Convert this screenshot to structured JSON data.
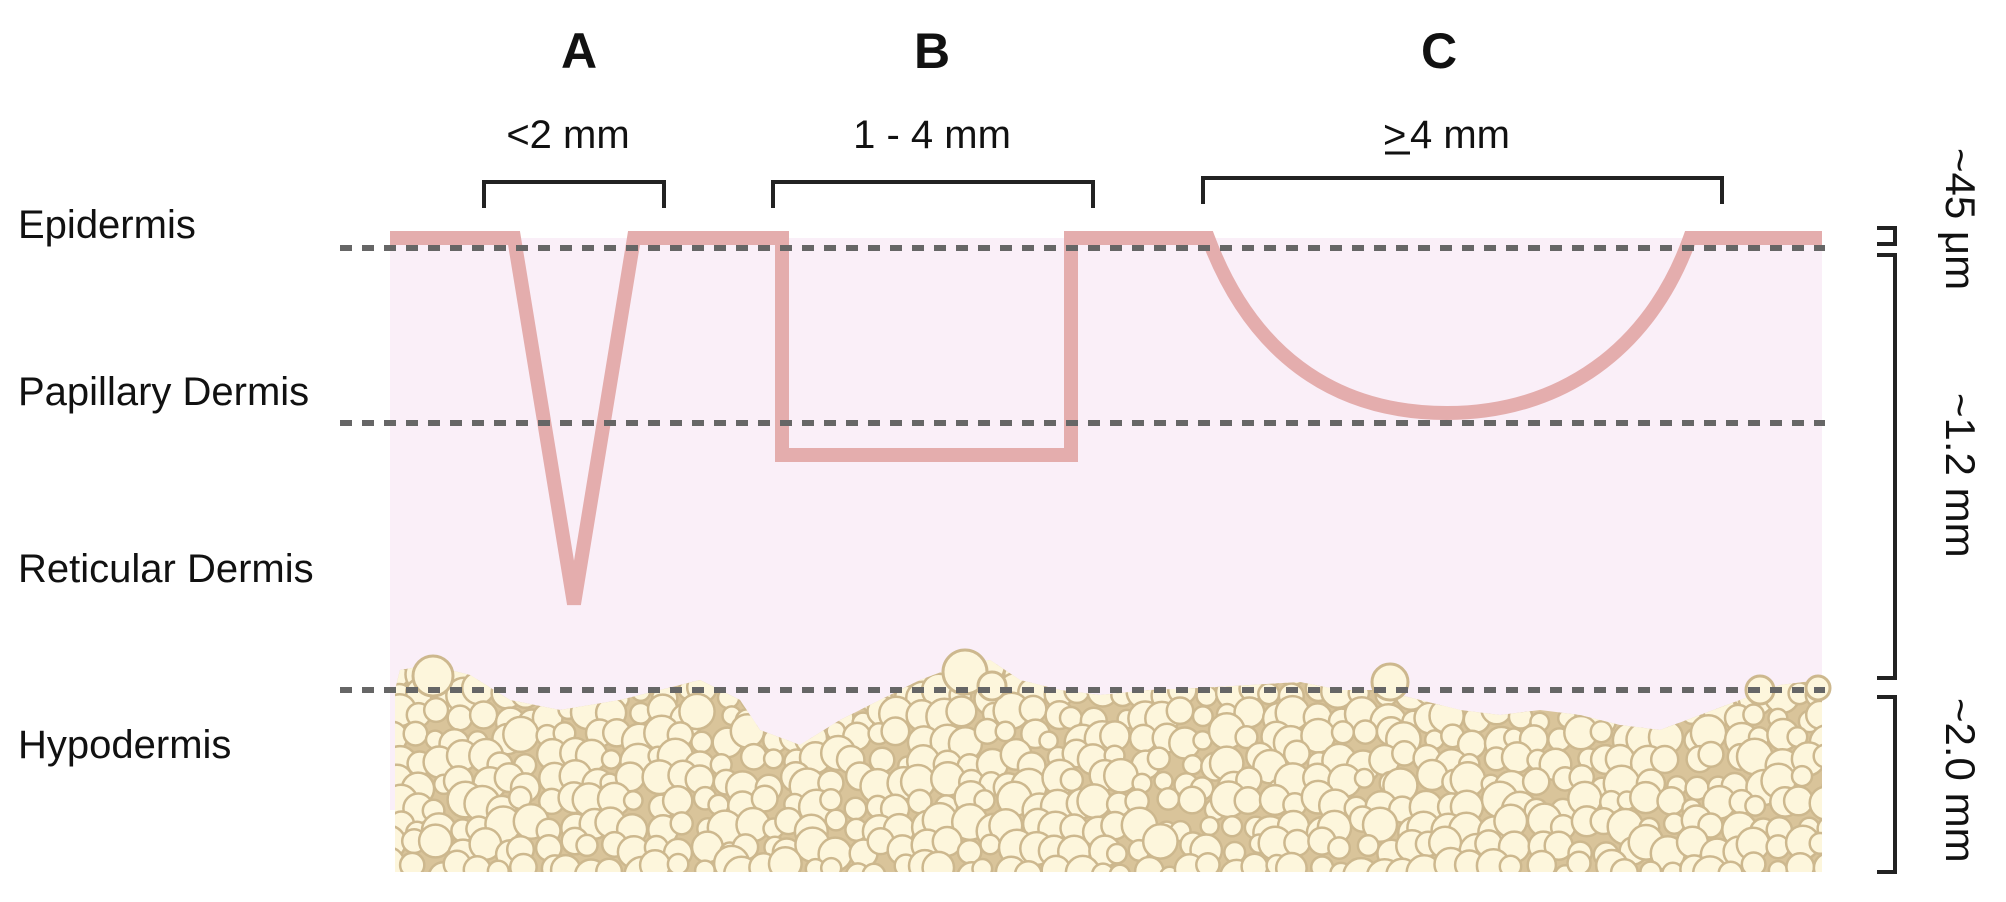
{
  "layers": [
    {
      "key": "epidermis",
      "label": "Epidermis"
    },
    {
      "key": "papillary",
      "label": "Papillary Dermis"
    },
    {
      "key": "reticular",
      "label": "Reticular Dermis"
    },
    {
      "key": "hypodermis",
      "label": "Hypodermis"
    }
  ],
  "scar_types": [
    {
      "letter": "A",
      "size_text": "<2 mm",
      "shape": "V-shaped icepick"
    },
    {
      "letter": "B",
      "size_text": "1 - 4 mm",
      "shape": "box"
    },
    {
      "letter": "C",
      "size_text": "4 mm",
      "size_prefix_symbol": ">",
      "shape": "rolling"
    }
  ],
  "depths": [
    {
      "key": "epidermis",
      "text": "~45 μm"
    },
    {
      "key": "dermis",
      "text": "~1.2 mm"
    },
    {
      "key": "hypodermis",
      "text": "~2.0 mm"
    }
  ],
  "colors": {
    "dermis_fill": "#faeff8",
    "scar_outline": "#e4adad",
    "boundary_dash": "#666666",
    "fat_cell_fill": "#fdf6dc",
    "fat_cell_stroke": "#cdb88e",
    "fat_background": "#d9c49a",
    "bracket": "#222222"
  }
}
